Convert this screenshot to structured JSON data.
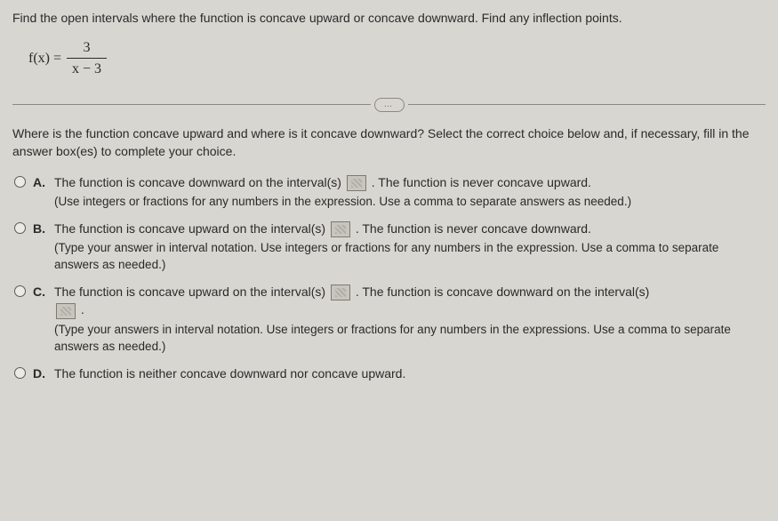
{
  "question": {
    "prompt": "Find the open intervals where the function is concave upward or concave downward. Find any inflection points.",
    "function_lhs": "f(x) =",
    "numerator": "3",
    "denominator": "x − 3"
  },
  "sub_prompt": "Where is the function concave upward and where is it concave downward? Select the correct choice below and, if necessary, fill in the answer box(es) to complete your choice.",
  "choices": {
    "A": {
      "label": "A.",
      "text_before": "The function is concave downward on the interval(s) ",
      "text_after": ". The function is never concave upward.",
      "hint": "(Use integers or fractions for any numbers in the expression. Use a comma to separate answers as needed.)"
    },
    "B": {
      "label": "B.",
      "text_before": "The function is concave upward on the interval(s) ",
      "text_after": ". The function is never concave downward.",
      "hint": "(Type your answer in interval notation. Use integers or fractions for any numbers in the expression. Use a comma to separate answers as needed.)"
    },
    "C": {
      "label": "C.",
      "text_before": "The function is concave upward on the interval(s) ",
      "text_mid": ". The function is concave downward on the interval(s) ",
      "text_after": ".",
      "hint": "(Type your answers in interval notation. Use integers or fractions for any numbers in the expressions. Use a comma to separate answers as needed.)"
    },
    "D": {
      "label": "D.",
      "text": "The function is neither concave downward nor concave upward."
    }
  },
  "ellipsis": "…"
}
